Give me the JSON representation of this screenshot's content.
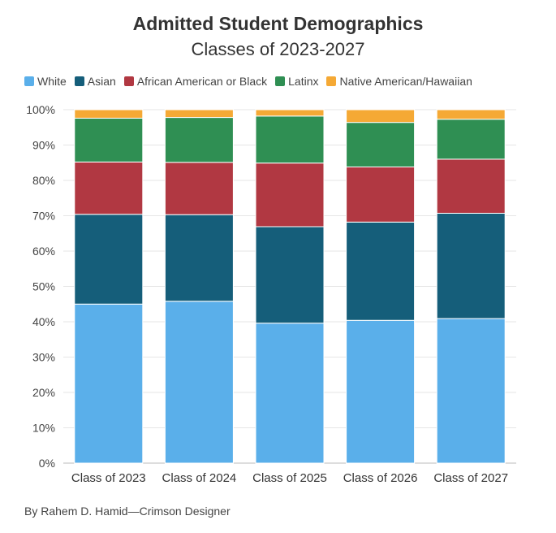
{
  "title": "Admitted Student Demographics",
  "subtitle": "Classes of 2023-2027",
  "credit": "By Rahem D. Hamid—Crimson Designer",
  "chart_data": {
    "type": "bar",
    "stacked": true,
    "title": "Admitted Student Demographics",
    "subtitle": "Classes of 2023-2027",
    "categories": [
      "Class of 2023",
      "Class of 2024",
      "Class of 2025",
      "Class of 2026",
      "Class of 2027"
    ],
    "series": [
      {
        "name": "White",
        "color": "#5aafea",
        "values": [
          45.0,
          45.8,
          39.6,
          40.4,
          40.9
        ]
      },
      {
        "name": "Asian",
        "color": "#155e7a",
        "values": [
          25.4,
          24.5,
          27.3,
          27.8,
          29.8
        ]
      },
      {
        "name": "African American or Black",
        "color": "#b13842",
        "values": [
          14.8,
          14.8,
          18.0,
          15.6,
          15.3
        ]
      },
      {
        "name": "Latinx",
        "color": "#2f8f53",
        "values": [
          12.4,
          12.7,
          13.3,
          12.6,
          11.3
        ]
      },
      {
        "name": "Native American/Hawaiian",
        "color": "#f5a935",
        "values": [
          2.4,
          2.2,
          1.8,
          3.6,
          2.7
        ]
      }
    ],
    "ylim": [
      0,
      100
    ],
    "yticks": [
      "0%",
      "10%",
      "20%",
      "30%",
      "40%",
      "50%",
      "60%",
      "70%",
      "80%",
      "90%",
      "100%"
    ],
    "grid": true,
    "legend_position": "top-left"
  }
}
